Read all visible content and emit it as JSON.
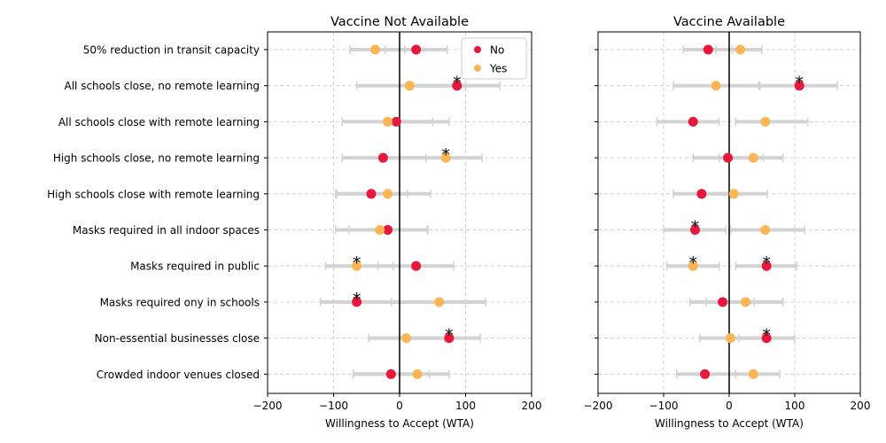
{
  "colors": {
    "No": "#e8173c",
    "Yes": "#fbb555",
    "ci": "#d3d3d3",
    "grid": "#c8c8c8",
    "zero_line": "#000000"
  },
  "chart_data": {
    "type": "scatter",
    "categories": [
      "50% reduction in transit capacity",
      "All schools close, no remote learning",
      "All schools close with remote learning",
      "High schools close, no remote learning",
      "High schools close with remote learning",
      "Masks required in all indoor spaces",
      "Masks required in public",
      "Masks required ony in schools",
      "Non-essential businesses close",
      "Crowded indoor venues closed"
    ],
    "legend": {
      "position": "top-right",
      "entries": [
        "No",
        "Yes"
      ]
    },
    "significance_marker": "*",
    "xlim": [
      -200,
      200
    ],
    "xticks": [
      -200,
      -100,
      0,
      100,
      200
    ],
    "xtick_labels": [
      "−200",
      "−100",
      "0",
      "100",
      "200"
    ],
    "grid": true,
    "panels": [
      {
        "title": "Vaccine Not Available",
        "xlabel": "Willingness to Accept (WTA)",
        "series": [
          {
            "name": "No",
            "values": [
              25,
              87,
              -5,
              -25,
              -43,
              -18,
              25,
              -65,
              75,
              -13
            ],
            "ci_low": [
              -22,
              20,
              -20,
              -20,
              -95,
              -77,
              -33,
              -120,
              0,
              -70
            ],
            "ci_high": [
              72,
              152,
              50,
              40,
              12,
              42,
              82,
              130,
              122,
              45
            ],
            "significant": [
              false,
              true,
              false,
              false,
              false,
              false,
              false,
              true,
              true,
              false
            ]
          },
          {
            "name": "Yes",
            "values": [
              -37,
              15,
              -18,
              70,
              -18,
              -30,
              -65,
              60,
              10,
              27
            ],
            "ci_low": [
              -75,
              -65,
              -87,
              -87,
              -97,
              -97,
              -112,
              -12,
              -47,
              -70
            ],
            "ci_high": [
              8,
              100,
              75,
              125,
              47,
              43,
              -10,
              130,
              68,
              75
            ],
            "significant": [
              false,
              false,
              false,
              true,
              false,
              false,
              true,
              false,
              false,
              false
            ]
          }
        ]
      },
      {
        "title": "Vaccine Available",
        "xlabel": "Willingness to Accept (WTA)",
        "series": [
          {
            "name": "No",
            "values": [
              -32,
              107,
              -55,
              -2,
              -42,
              -52,
              57,
              -10,
              57,
              -37
            ],
            "ci_low": [
              -70,
              45,
              -110,
              -55,
              -85,
              -100,
              10,
              -60,
              15,
              -80
            ],
            "ci_high": [
              5,
              165,
              -15,
              52,
              0,
              -5,
              103,
              38,
              100,
              10
            ],
            "significant": [
              false,
              true,
              false,
              false,
              false,
              true,
              true,
              false,
              true,
              false
            ]
          },
          {
            "name": "Yes",
            "values": [
              17,
              -20,
              55,
              37,
              7,
              55,
              -55,
              25,
              2,
              37
            ],
            "ci_low": [
              -20,
              -85,
              10,
              -15,
              -40,
              2,
              -95,
              -35,
              -45,
              10
            ],
            "ci_high": [
              50,
              47,
              120,
              82,
              58,
              115,
              -15,
              82,
              50,
              77
            ],
            "significant": [
              false,
              false,
              false,
              false,
              false,
              false,
              true,
              false,
              false,
              false
            ]
          }
        ]
      }
    ]
  }
}
